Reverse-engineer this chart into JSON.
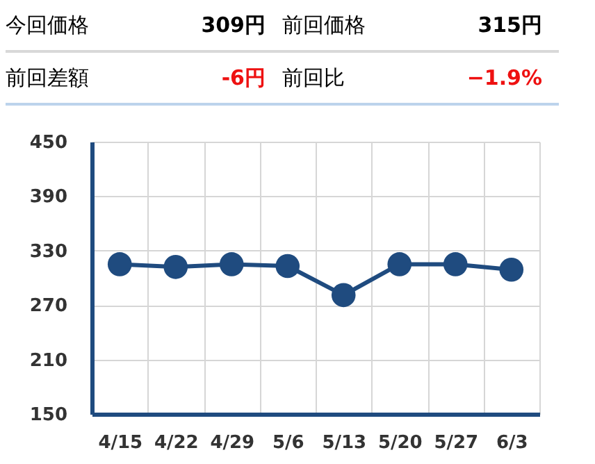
{
  "chart_data": {
    "type": "line",
    "annotations": [
      "今回価格",
      "309円",
      "前回価格",
      "315円",
      "前回差額",
      "-6円",
      "前回比",
      "−1.9%"
    ],
    "categories": [
      "4/15",
      "4/22",
      "4/29",
      "5/6",
      "5/13",
      "5/20",
      "5/27",
      "6/3"
    ],
    "series": [
      {
        "color": "#1f4b7f",
        "values": [
          315,
          312,
          315,
          313,
          281,
          315,
          315,
          309
        ]
      }
    ],
    "ylim": [
      150,
      450
    ],
    "yticks": [
      150,
      210,
      270,
      330,
      390,
      450
    ],
    "grid": true,
    "marker": "circle",
    "line_style": "solid"
  }
}
